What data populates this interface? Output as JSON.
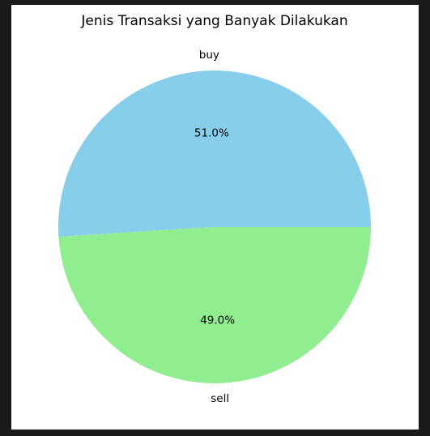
{
  "chart_data": {
    "type": "pie",
    "title": "Jenis Transaksi yang Banyak Dilakukan",
    "categories": [
      "buy",
      "sell"
    ],
    "values": [
      51.0,
      49.0
    ],
    "percent_labels": [
      "51.0%",
      "49.0%"
    ],
    "colors": [
      "#87CEEB",
      "#90EE90"
    ],
    "legend": "none"
  }
}
